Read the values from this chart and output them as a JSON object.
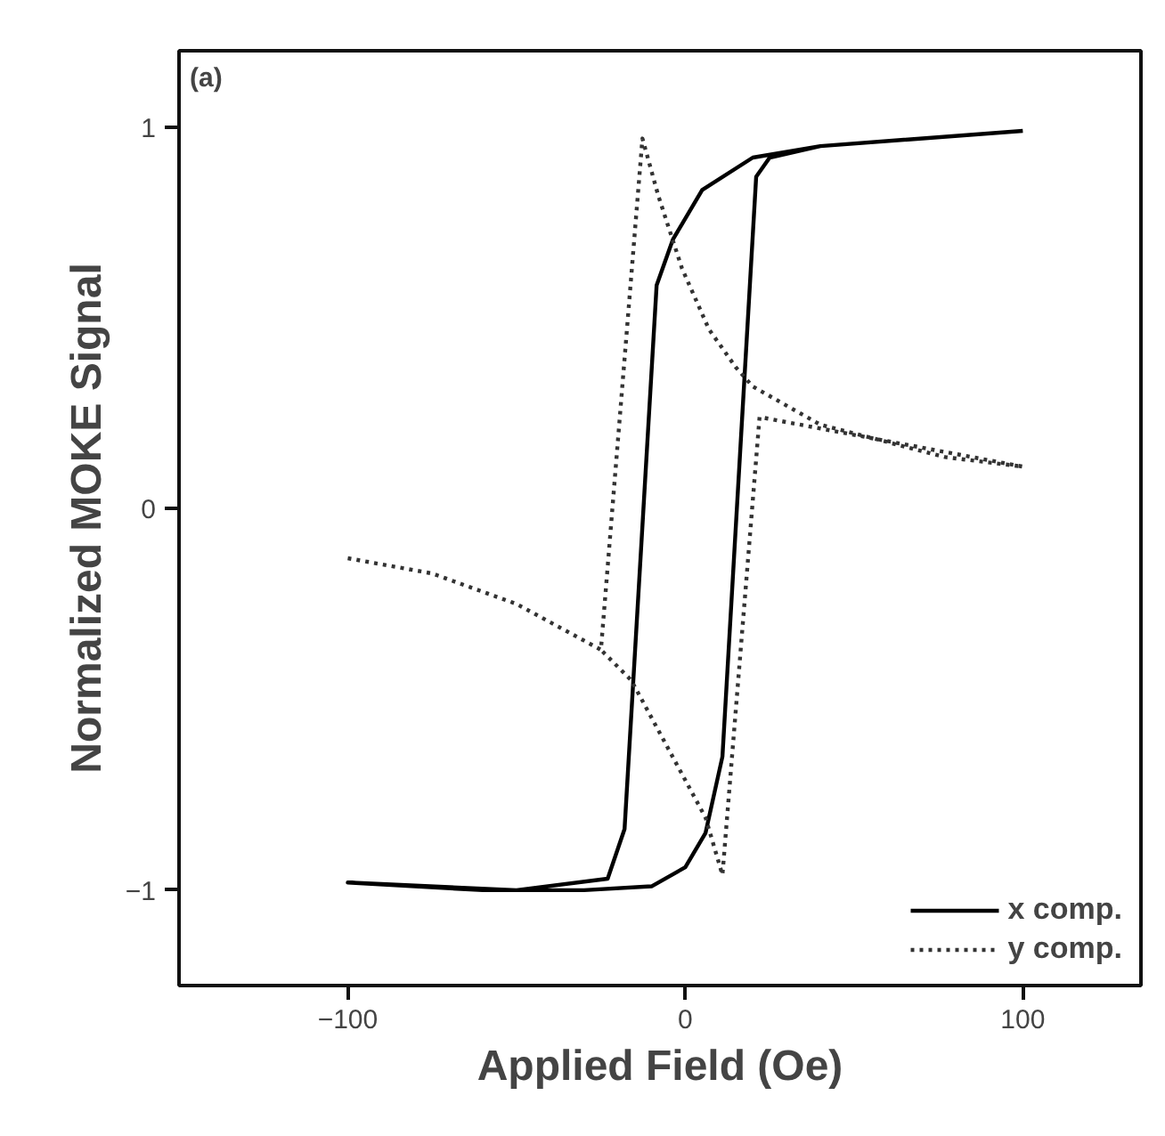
{
  "chart_data": {
    "type": "line",
    "xlabel": "Applied Field (Oe)",
    "ylabel": "Normalized MOKE Signal",
    "annotations": [
      "(a)"
    ],
    "xlim": [
      -150,
      135
    ],
    "ylim": [
      -1.25,
      1.2
    ],
    "xticks": [
      -100,
      0,
      100
    ],
    "yticks": [
      -1,
      0,
      1
    ],
    "grid": false,
    "legend": "bottom right",
    "marker": "none",
    "series": [
      {
        "name": "x comp.",
        "color": "#000000",
        "line_style": "solid",
        "x": [
          100,
          40,
          25,
          21,
          11,
          6,
          0,
          -10,
          -30,
          -60,
          -100,
          -50,
          -23,
          -18,
          -8.5,
          -3.7,
          5,
          20,
          40
        ],
        "values": [
          0.99,
          0.95,
          0.92,
          0.87,
          -0.65,
          -0.85,
          -0.94,
          -0.99,
          -1.0,
          -1.0,
          -0.98,
          -1.0,
          -0.97,
          -0.84,
          0.585,
          0.705,
          0.835,
          0.92,
          0.95
        ]
      },
      {
        "name": "y comp.",
        "color": "#333333",
        "line_style": "dotted",
        "x": [
          -100,
          -75,
          -50,
          -25,
          -12.7,
          -8,
          -1,
          7,
          15,
          20,
          40,
          77,
          100,
          40,
          22,
          11,
          6,
          -16,
          -25
        ],
        "values": [
          -0.13,
          -0.17,
          -0.25,
          -0.37,
          0.97,
          0.82,
          0.63,
          0.47,
          0.37,
          0.32,
          0.22,
          0.135,
          0.11,
          0.21,
          0.24,
          -0.96,
          -0.81,
          -0.45,
          -0.37
        ]
      }
    ]
  }
}
